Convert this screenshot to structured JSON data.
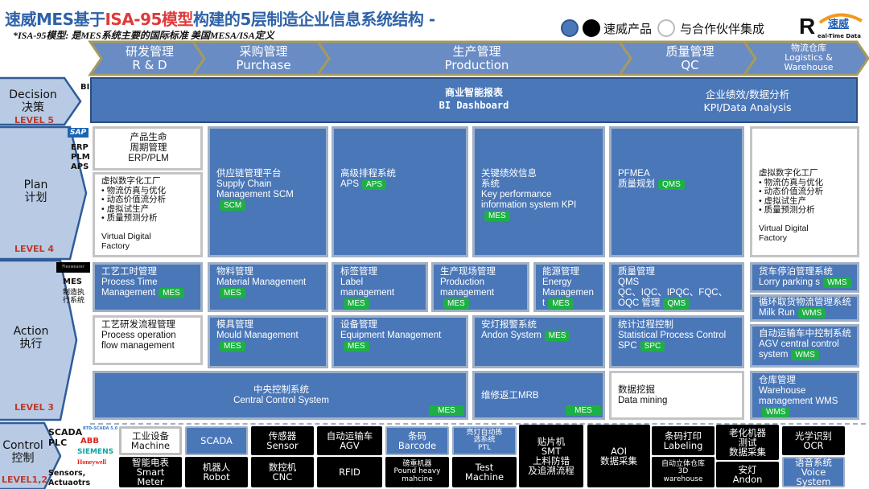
{
  "title": {
    "part1": "速威MES基于",
    "highlight": "ISA-95模型",
    "part2": "构建的5层制造企业信息系统结构 -"
  },
  "subtitle": "*ISA-95模型: 是MES系统主要的国际标准 美国MESA/ISA定义",
  "legend": {
    "own_label": "速威产品",
    "partner_label": "与合作伙伴集成",
    "own_colors": [
      "#4A77B8",
      "#000000"
    ],
    "partner_color": "#FFFFFF"
  },
  "logo": {
    "letter": "R",
    "cn": "速威",
    "en": "eal-Time Data"
  },
  "process": [
    {
      "cn": "研发管理",
      "en": "R & D"
    },
    {
      "cn": "采购管理",
      "en": "Purchase"
    },
    {
      "cn": "生产管理",
      "en": "Production"
    },
    {
      "cn": "质量管理",
      "en": "QC"
    },
    {
      "cn": "物流仓库",
      "en": "Logistics &\nWarehouse"
    }
  ],
  "levels": [
    {
      "en": "Decision",
      "cn": "决策",
      "level": "LEVEL 5"
    },
    {
      "en": "Plan",
      "cn": "计划",
      "level": "LEVEL 4"
    },
    {
      "en": "Action",
      "cn": "执行",
      "level": "LEVEL 3"
    },
    {
      "en": "Control",
      "cn": "控制",
      "level": "LEVEL1,2"
    }
  ],
  "side": {
    "bi": "BI",
    "sap": "SAP",
    "erp": "ERP\nPLM\nAPS",
    "flex": "Flexwearer",
    "mes": "MES",
    "mes_cn": "制造执\n行系统",
    "scada": "SCADA\nPLC",
    "rtd": "RTD-SCADA 5.0",
    "abb": "ABB",
    "siemens": "SIEMENS",
    "honeywell": "Honeywell",
    "sensors": "Sensors,\nActuaotrs"
  },
  "decision": {
    "cn": "商业智能报表",
    "en": "BI Dashboard",
    "kpi_cn": "企业绩效/数据分析",
    "kpi_en": "KPI/Data Analysis"
  },
  "cells": [
    {
      "text": "产品生命\n周期管理\nERP/PLM",
      "color": "white"
    },
    {
      "text": "虚拟数字化工厂\n•      物流仿真与优化\n•      动态价值流分析\n•      虚拟试生产\n•      质量预测分析\n\nVirtual Digital\nFactory",
      "color": "white"
    },
    {
      "text": "供应链管理平台\nSupply Chain\nManagement SCM",
      "badge": "SCM",
      "color": "blue"
    },
    {
      "text": "高级排程系统\nAPS",
      "badge": "APS",
      "color": "blue"
    },
    {
      "text": "关键绩效信息\n系统\nKey performance\ninformation system KPI",
      "badge": "MES",
      "color": "blue"
    },
    {
      "text": "PFMEA\n质量规划",
      "badge": "QMS",
      "color": "blue"
    },
    {
      "text": "虚拟数字化工厂\n•      物流仿真与优化\n•      动态价值流分析\n•      虚拟试生产\n•      质量预测分析\n\nVirtual Digital\nFactory",
      "color": "white"
    },
    {
      "text": "工艺工时管理\nProcess Time\nManagement",
      "badge": "MES",
      "color": "blue"
    },
    {
      "text": "物料管理\nMaterial Management",
      "badge": "MES",
      "color": "blue"
    },
    {
      "text": "标签管理\nLabel\nmanagement",
      "badge": "MES",
      "color": "blue"
    },
    {
      "text": "生产现场管理\nProduction\nmanagement",
      "badge": "MES",
      "color": "blue"
    },
    {
      "text": "能源管理\nEnergy\nManagemen\nt",
      "badge": "MES",
      "color": "blue"
    },
    {
      "text": "质量管理\nQMS\nQC、IQC、IPQC、FQC、\nOQC 管理",
      "badge": "QMS",
      "color": "blue"
    },
    {
      "text": "货车停泊管理系统\nLorry parking s",
      "badge": "WMS",
      "color": "blue"
    },
    {
      "text": "循环取货物流管理系统\nMilk Run",
      "badge": "WMS",
      "color": "blue"
    },
    {
      "text": "工艺研发流程管理\nProcess operation\nflow management",
      "color": "white"
    },
    {
      "text": "模具管理\nMould Management",
      "badge": "MES",
      "color": "blue"
    },
    {
      "text": "设备管理\nEquipment Management",
      "badge": "MES",
      "color": "blue"
    },
    {
      "text": "安灯报警系统\nAndon System",
      "badge": "MES",
      "color": "blue"
    },
    {
      "text": "统计过程控制\nStatistical Process Control\nSPC",
      "badge": "SPC",
      "color": "blue"
    },
    {
      "text": "自动运输车中控制系统\nAGV central control\nsystem",
      "badge": "WMS",
      "color": "blue"
    },
    {
      "text": "中央控制系统\nCentral Control System",
      "badge": "MES",
      "color": "blue"
    },
    {
      "text": "维修返工MRB",
      "badge": "MES",
      "color": "blue"
    },
    {
      "text": "数据挖掘\nData mining",
      "color": "white"
    },
    {
      "text": "仓库管理\nWarehouse\nmanagement WMS",
      "badge": "WMS",
      "color": "blue"
    }
  ],
  "control": [
    {
      "text": "工业设备\nMachine",
      "color": "white"
    },
    {
      "text": "SCADA",
      "color": "blue"
    },
    {
      "text": "传感器\nSensor",
      "color": "black"
    },
    {
      "text": "自动运输车\nAGV",
      "color": "black"
    },
    {
      "text": "条码\nBarcode",
      "color": "blue"
    },
    {
      "text": "亮灯自动拣\n选系统\nPTL",
      "color": "blue"
    },
    {
      "text": "智能电表\nSmart\nMeter",
      "color": "black"
    },
    {
      "text": "机器人\nRobot",
      "color": "black"
    },
    {
      "text": "数控机\nCNC",
      "color": "black"
    },
    {
      "text": "RFID",
      "color": "black"
    },
    {
      "text": "磅重机器\nPound heavy\nmahcine",
      "color": "black"
    },
    {
      "text": "Test\nMachine",
      "color": "black"
    },
    {
      "text": "贴片机\nSMT\n上料防错\n及追溯流程",
      "color": "black"
    },
    {
      "text": "AOI\n数据采集",
      "color": "black"
    },
    {
      "text": "条码打印\nLabeling",
      "color": "black"
    },
    {
      "text": "自动立体仓库\n3D\nwarehouse",
      "color": "black"
    },
    {
      "text": "老化机器\n测试\n数据采集",
      "color": "black"
    },
    {
      "text": "安灯\nAndon",
      "color": "black"
    },
    {
      "text": "光学识别\nOCR",
      "color": "black"
    },
    {
      "text": "语音系统\nVoice\nSystem",
      "color": "blue"
    }
  ]
}
